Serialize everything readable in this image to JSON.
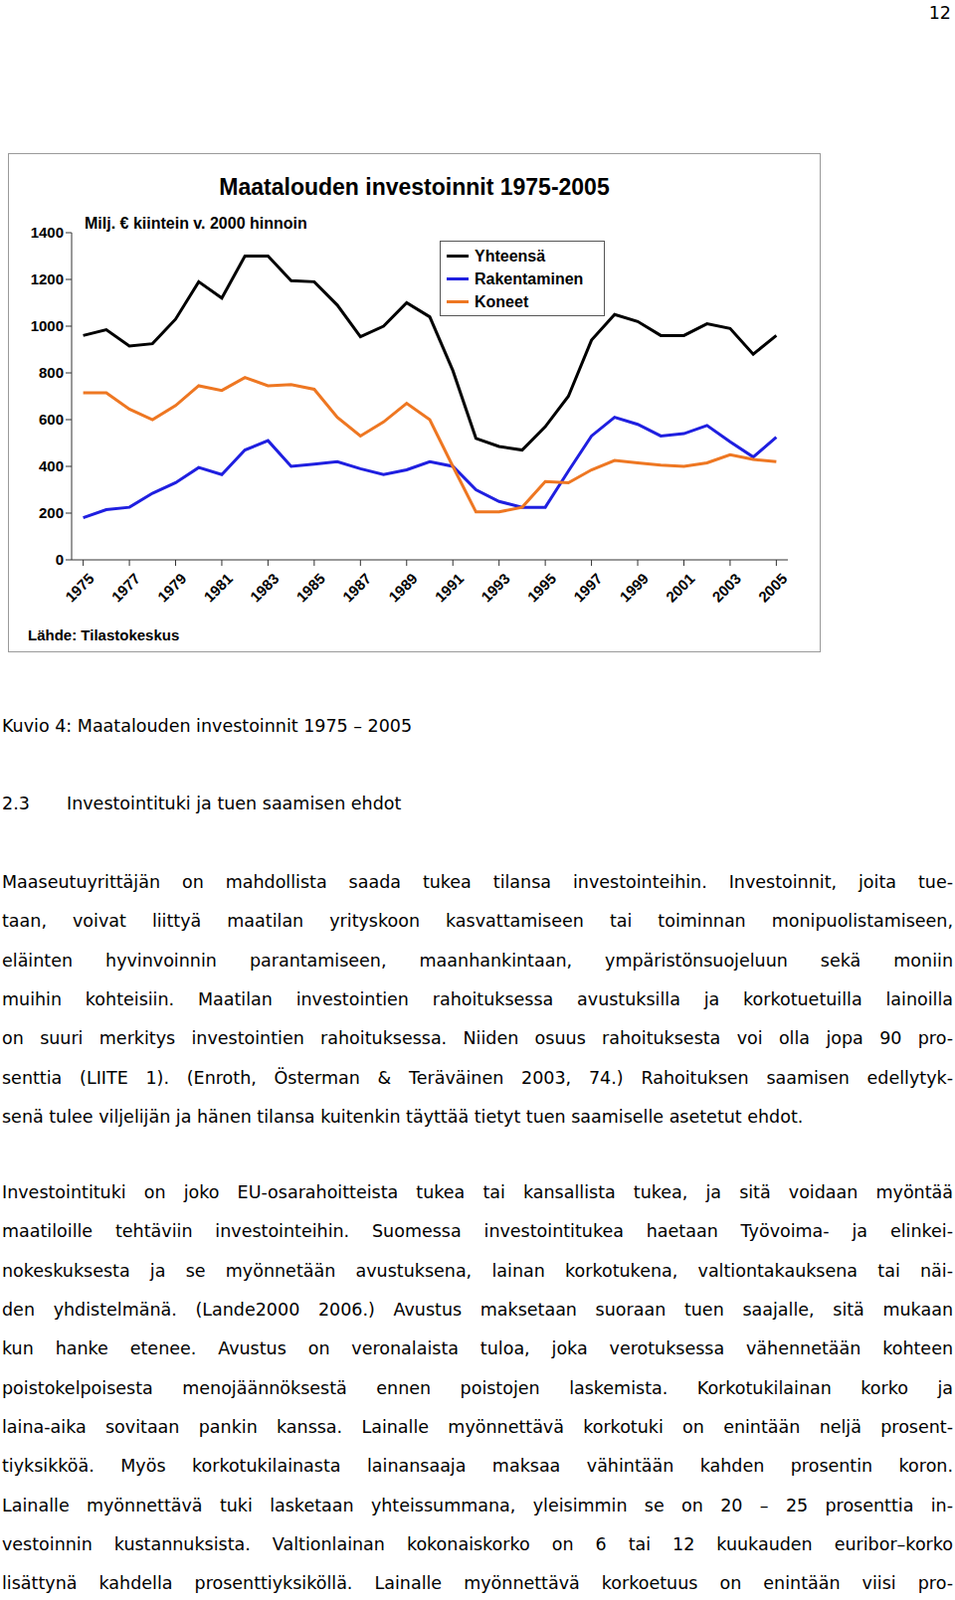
{
  "page_number": "12",
  "chart_data": {
    "type": "line",
    "title": "Maatalouden investoinnit 1975-2005",
    "subtitle": "Milj. € kiintein v. 2000 hinnoin",
    "source": "Lähde: Tilastokeskus",
    "x": [
      1975,
      1976,
      1977,
      1978,
      1979,
      1980,
      1981,
      1982,
      1983,
      1984,
      1985,
      1986,
      1987,
      1988,
      1989,
      1990,
      1991,
      1992,
      1993,
      1994,
      1995,
      1996,
      1997,
      1998,
      1999,
      2000,
      2001,
      2002,
      2003,
      2004,
      2005
    ],
    "xlim": [
      1974.5,
      2005.5
    ],
    "xticks": [
      1975,
      1977,
      1979,
      1981,
      1983,
      1985,
      1987,
      1989,
      1991,
      1993,
      1995,
      1997,
      1999,
      2001,
      2003,
      2005
    ],
    "ylim": [
      0,
      1400
    ],
    "yticks": [
      0,
      200,
      400,
      600,
      800,
      1000,
      1200,
      1400
    ],
    "grid": false,
    "legend": "top",
    "series": [
      {
        "name": "Yhteensä",
        "color": "#000000",
        "values": [
          960,
          985,
          915,
          925,
          1030,
          1190,
          1120,
          1300,
          1300,
          1195,
          1190,
          1090,
          955,
          1000,
          1100,
          1040,
          810,
          520,
          485,
          470,
          570,
          700,
          940,
          1050,
          1020,
          960,
          960,
          1010,
          990,
          880,
          960
        ]
      },
      {
        "name": "Rakentaminen",
        "color": "#1f1fe0",
        "values": [
          180,
          215,
          225,
          285,
          330,
          395,
          365,
          470,
          510,
          400,
          410,
          420,
          390,
          365,
          385,
          420,
          400,
          300,
          250,
          225,
          225,
          380,
          530,
          610,
          580,
          530,
          540,
          575,
          505,
          440,
          525
        ]
      },
      {
        "name": "Koneet",
        "color": "#ee7722",
        "values": [
          715,
          715,
          645,
          600,
          660,
          745,
          725,
          780,
          745,
          750,
          730,
          610,
          530,
          590,
          670,
          600,
          400,
          205,
          205,
          225,
          335,
          330,
          385,
          425,
          415,
          405,
          400,
          415,
          450,
          430,
          420
        ]
      }
    ]
  },
  "caption": "Kuvio 4: Maatalouden investoinnit 1975 – 2005",
  "heading": {
    "number": "2.3",
    "title": "Investointituki ja tuen saamisen ehdot"
  },
  "paragraphs": [
    [
      "Maaseutuyrittäjän on mahdollista saada tukea tilansa investointeihin. Investoinnit, joita tue-",
      "taan, voivat liittyä maatilan yrityskoon kasvattamiseen tai toiminnan monipuolistamiseen,",
      "eläinten hyvinvoinnin parantamiseen, maanhankintaan, ympäristönsuojeluun sekä moniin",
      "muihin kohteisiin. Maatilan investointien rahoituksessa avustuksilla ja korkotuetuilla lainoilla",
      "on suuri merkitys investointien rahoituksessa. Niiden osuus rahoituksesta voi olla jopa 90 pro-",
      "senttia (LIITE 1). (Enroth, Österman & Teräväinen 2003, 74.) Rahoituksen saamisen edellytyk-",
      "senä tulee viljelijän ja hänen tilansa kuitenkin täyttää tietyt tuen saamiselle asetetut ehdot."
    ],
    [
      "Investointituki on joko EU-osarahoitteista tukea tai kansallista tukea, ja sitä voidaan myöntää",
      "maatiloille tehtäviin investointeihin. Suomessa investointitukea haetaan Työvoima- ja elinkei-",
      "nokeskuksesta ja se myönnetään avustuksena, lainan korkotukena, valtiontakauksena tai näi-",
      "den yhdistelmänä. (Lande2000 2006.) Avustus maksetaan suoraan tuen saajalle, sitä mukaan",
      "kun hanke etenee. Avustus on veronalaista tuloa, joka verotuksessa vähennetään kohteen",
      "poistokelpoisesta menojäännöksestä ennen poistojen laskemista. Korkotukilainan korko ja",
      "laina-aika sovitaan pankin kanssa. Lainalle myönnettävä korkotuki on enintään neljä prosent-",
      "tiyksikköä. Myös korkotukilainasta lainansaaja maksaa vähintään kahden prosentin koron.",
      "Lainalle myönnettävä tuki lasketaan yhteissummana, yleisimmin se on 20 – 25 prosenttia in-",
      "vestoinnin kustannuksista. Valtionlainan kokonaiskorko on 6 tai 12 kuukauden euribor–korko",
      "lisättynä kahdella prosenttiyksiköllä. Lainalle myönnettävä korkoetuus on enintään viisi pro-"
    ]
  ]
}
